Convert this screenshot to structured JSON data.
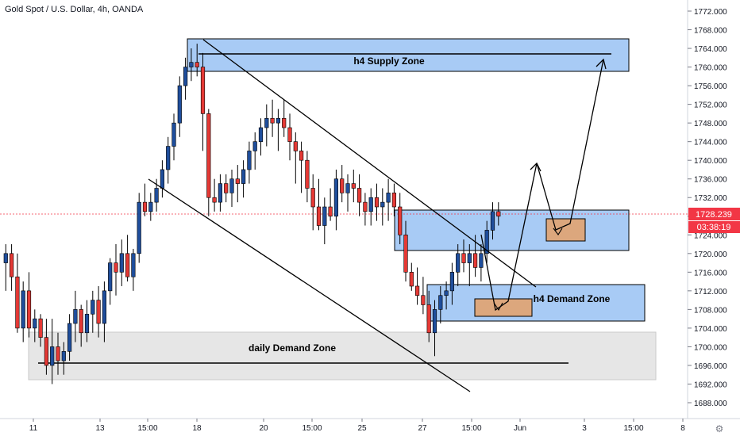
{
  "header": {
    "title": "Gold Spot / U.S. Dollar, 4h, OANDA"
  },
  "colors": {
    "up": "#1f4e9c",
    "down": "#e53935",
    "zone_blue": "#a8cbf5",
    "zone_grey": "#e6e6e6",
    "zone_orange": "#dca77d",
    "price_label": "#f23645"
  },
  "chart_data": {
    "type": "candlestick",
    "title": "Gold Spot / U.S. Dollar, 4h, OANDA",
    "x_ticks": [
      "11",
      "13",
      "15:00",
      "18",
      "20",
      "15:00",
      "25",
      "27",
      "15:00",
      "Jun",
      "3",
      "15:00",
      "8"
    ],
    "y_ticks": [
      1688,
      1692,
      1696,
      1700,
      1704,
      1708,
      1712,
      1716,
      1720,
      1724,
      1728,
      1732,
      1736,
      1740,
      1744,
      1748,
      1752,
      1756,
      1760,
      1764,
      1768,
      1772
    ],
    "y_tick_labels": [
      "1688.000",
      "1692.000",
      "1696.000",
      "1700.000",
      "1704.000",
      "1708.000",
      "1712.000",
      "1716.000",
      "1720.000",
      "1724.000",
      "1728.000",
      "1732.000",
      "1736.000",
      "1740.000",
      "1744.000",
      "1748.000",
      "1752.000",
      "1756.000",
      "1760.000",
      "1764.000",
      "1768.000",
      "1772.000"
    ],
    "ylim": [
      1686,
      1774
    ],
    "last_price": "1728.239",
    "countdown": "03:38:19",
    "candles": [
      [
        1718,
        1722,
        1712,
        1720
      ],
      [
        1720,
        1722,
        1712,
        1715
      ],
      [
        1715,
        1720,
        1703,
        1704
      ],
      [
        1704,
        1714,
        1701,
        1712
      ],
      [
        1712,
        1716,
        1702,
        1704
      ],
      [
        1704,
        1708,
        1701,
        1706
      ],
      [
        1706,
        1707,
        1700,
        1702
      ],
      [
        1702,
        1706,
        1694,
        1696
      ],
      [
        1696,
        1706,
        1692,
        1700
      ],
      [
        1700,
        1703,
        1694,
        1697
      ],
      [
        1697,
        1701,
        1694,
        1699
      ],
      [
        1699,
        1707,
        1697,
        1705
      ],
      [
        1705,
        1712,
        1701,
        1708
      ],
      [
        1708,
        1709,
        1700,
        1703
      ],
      [
        1703,
        1710,
        1701,
        1707
      ],
      [
        1707,
        1712,
        1703,
        1710
      ],
      [
        1710,
        1713,
        1702,
        1705
      ],
      [
        1705,
        1714,
        1701,
        1712
      ],
      [
        1712,
        1719,
        1709,
        1718
      ],
      [
        1718,
        1722,
        1711,
        1716
      ],
      [
        1716,
        1723,
        1713,
        1720
      ],
      [
        1720,
        1724,
        1714,
        1715
      ],
      [
        1715,
        1721,
        1712,
        1720
      ],
      [
        1720,
        1733,
        1718,
        1731
      ],
      [
        1731,
        1735,
        1728,
        1729
      ],
      [
        1729,
        1733,
        1727,
        1731
      ],
      [
        1731,
        1736,
        1729,
        1734
      ],
      [
        1734,
        1740,
        1732,
        1738
      ],
      [
        1738,
        1745,
        1735,
        1743
      ],
      [
        1743,
        1750,
        1740,
        1748
      ],
      [
        1748,
        1758,
        1745,
        1756
      ],
      [
        1756,
        1762,
        1753,
        1760
      ],
      [
        1760,
        1764,
        1757,
        1761
      ],
      [
        1761,
        1765,
        1758,
        1760
      ],
      [
        1760,
        1763,
        1742,
        1750
      ],
      [
        1750,
        1751,
        1728,
        1732
      ],
      [
        1732,
        1736,
        1729,
        1731
      ],
      [
        1731,
        1737,
        1729,
        1735
      ],
      [
        1735,
        1737,
        1731,
        1733
      ],
      [
        1733,
        1738,
        1730,
        1736
      ],
      [
        1736,
        1739,
        1731,
        1735
      ],
      [
        1735,
        1740,
        1732,
        1738
      ],
      [
        1738,
        1744,
        1735,
        1742
      ],
      [
        1742,
        1746,
        1738,
        1744
      ],
      [
        1744,
        1749,
        1741,
        1747
      ],
      [
        1747,
        1752,
        1743,
        1749
      ],
      [
        1749,
        1753,
        1745,
        1748
      ],
      [
        1748,
        1751,
        1742,
        1749
      ],
      [
        1749,
        1753,
        1745,
        1747
      ],
      [
        1747,
        1750,
        1740,
        1744
      ],
      [
        1744,
        1746,
        1735,
        1742
      ],
      [
        1742,
        1744,
        1733,
        1740
      ],
      [
        1740,
        1742,
        1731,
        1734
      ],
      [
        1734,
        1737,
        1725,
        1730
      ],
      [
        1730,
        1736,
        1725,
        1726
      ],
      [
        1726,
        1732,
        1722,
        1730
      ],
      [
        1730,
        1734,
        1727,
        1728
      ],
      [
        1728,
        1738,
        1725,
        1736
      ],
      [
        1736,
        1739,
        1731,
        1733
      ],
      [
        1733,
        1737,
        1729,
        1735
      ],
      [
        1735,
        1738,
        1731,
        1734
      ],
      [
        1734,
        1737,
        1728,
        1731
      ],
      [
        1731,
        1733,
        1726,
        1729
      ],
      [
        1729,
        1734,
        1726,
        1732
      ],
      [
        1732,
        1735,
        1727,
        1730
      ],
      [
        1730,
        1734,
        1726,
        1731
      ],
      [
        1731,
        1736,
        1727,
        1733
      ],
      [
        1733,
        1735,
        1728,
        1730
      ],
      [
        1730,
        1733,
        1722,
        1724
      ],
      [
        1724,
        1727,
        1714,
        1716
      ],
      [
        1716,
        1718,
        1712,
        1713
      ],
      [
        1713,
        1717,
        1709,
        1711
      ],
      [
        1711,
        1715,
        1707,
        1709
      ],
      [
        1709,
        1712,
        1701,
        1703
      ],
      [
        1703,
        1710,
        1698,
        1708
      ],
      [
        1708,
        1713,
        1705,
        1711
      ],
      [
        1711,
        1714,
        1708,
        1712
      ],
      [
        1712,
        1718,
        1709,
        1716
      ],
      [
        1716,
        1722,
        1713,
        1720
      ],
      [
        1720,
        1723,
        1716,
        1718
      ],
      [
        1718,
        1722,
        1713,
        1720
      ],
      [
        1720,
        1724,
        1715,
        1717
      ],
      [
        1717,
        1722,
        1714,
        1720
      ],
      [
        1720,
        1727,
        1718,
        1725
      ],
      [
        1725,
        1731,
        1723,
        1729
      ],
      [
        1729,
        1731,
        1726,
        1728
      ]
    ],
    "zones": [
      {
        "name": "h4 Supply Zone",
        "from": 1759,
        "to": 1766
      },
      {
        "name": "h4 Demand Zone",
        "from": 1706,
        "to": 1713
      },
      {
        "name": "daily Demand Zone",
        "from": 1693,
        "to": 1703
      },
      {
        "name": "",
        "from": 1721,
        "to": 1729
      }
    ]
  }
}
